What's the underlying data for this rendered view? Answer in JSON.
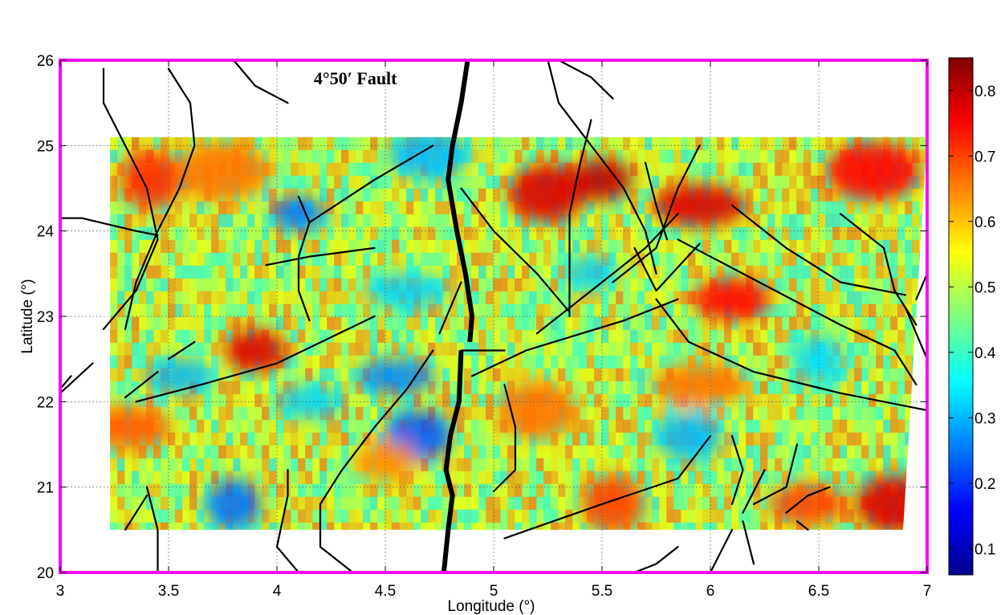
{
  "chart_data": {
    "type": "heatmap",
    "title": "",
    "xlabel": "Longitude (°)",
    "ylabel": "Latitude (°)",
    "xlim": [
      3,
      7
    ],
    "ylim": [
      20,
      26
    ],
    "x_ticks": [
      3,
      3.5,
      4,
      4.5,
      5,
      5.5,
      6,
      6.5,
      7
    ],
    "x_tick_labels": [
      "3",
      "3.5",
      "4",
      "4.5",
      "5",
      "5.5",
      "6",
      "6.5",
      "7"
    ],
    "y_ticks": [
      20,
      21,
      22,
      23,
      24,
      25,
      26
    ],
    "y_tick_labels": [
      "20",
      "21",
      "22",
      "23",
      "24",
      "25",
      "26"
    ],
    "grid": true,
    "frame_color": "#ff00ff",
    "colormap": "jet",
    "colorbar": {
      "range": [
        0.06,
        0.85
      ],
      "ticks": [
        0.1,
        0.2,
        0.3,
        0.4,
        0.5,
        0.6,
        0.7,
        0.8
      ],
      "tick_labels": [
        "0.1",
        "0.2",
        "0.3",
        "0.4",
        "0.5",
        "0.6",
        "0.7",
        "0.8"
      ]
    },
    "data_extent": {
      "lon": [
        3.23,
        7.0
      ],
      "lat_north": 25.1,
      "lat_south": 20.5
    },
    "annotation": {
      "text": "4°50′ Fault",
      "lon": 4.17,
      "lat": 25.72
    },
    "hot_regions": [
      {
        "lon": 5.5,
        "lat": 24.6,
        "value": 0.8
      },
      {
        "lon": 5.25,
        "lat": 24.45,
        "value": 0.78
      },
      {
        "lon": 5.95,
        "lat": 24.3,
        "value": 0.78
      },
      {
        "lon": 3.42,
        "lat": 24.6,
        "value": 0.72
      },
      {
        "lon": 6.1,
        "lat": 23.2,
        "value": 0.75
      },
      {
        "lon": 6.75,
        "lat": 24.7,
        "value": 0.75
      },
      {
        "lon": 3.9,
        "lat": 22.6,
        "value": 0.78
      },
      {
        "lon": 6.85,
        "lat": 20.8,
        "value": 0.78
      },
      {
        "lon": 3.3,
        "lat": 21.7,
        "value": 0.68
      },
      {
        "lon": 5.55,
        "lat": 20.8,
        "value": 0.7
      },
      {
        "lon": 6.45,
        "lat": 20.8,
        "value": 0.7
      },
      {
        "lon": 3.75,
        "lat": 24.7,
        "value": 0.66
      },
      {
        "lon": 4.5,
        "lat": 21.3,
        "value": 0.64
      },
      {
        "lon": 5.2,
        "lat": 21.9,
        "value": 0.66
      },
      {
        "lon": 5.95,
        "lat": 22.2,
        "value": 0.66
      }
    ],
    "cold_regions": [
      {
        "lon": 4.1,
        "lat": 24.2,
        "value": 0.25
      },
      {
        "lon": 4.65,
        "lat": 21.6,
        "value": 0.22
      },
      {
        "lon": 4.55,
        "lat": 22.3,
        "value": 0.26
      },
      {
        "lon": 3.8,
        "lat": 20.8,
        "value": 0.24
      },
      {
        "lon": 3.55,
        "lat": 22.3,
        "value": 0.3
      },
      {
        "lon": 4.7,
        "lat": 24.9,
        "value": 0.3
      },
      {
        "lon": 5.45,
        "lat": 23.5,
        "value": 0.32
      },
      {
        "lon": 5.9,
        "lat": 21.6,
        "value": 0.3
      },
      {
        "lon": 4.6,
        "lat": 23.3,
        "value": 0.32
      },
      {
        "lon": 6.5,
        "lat": 22.5,
        "value": 0.33
      },
      {
        "lon": 4.15,
        "lat": 22.0,
        "value": 0.32
      }
    ],
    "main_fault": [
      [
        4.88,
        26.0
      ],
      [
        4.85,
        25.5
      ],
      [
        4.81,
        25.0
      ],
      [
        4.79,
        24.6
      ],
      [
        4.83,
        24.0
      ],
      [
        4.87,
        23.5
      ],
      [
        4.9,
        23.0
      ],
      [
        4.89,
        22.7
      ]
    ],
    "main_fault_south": [
      [
        4.85,
        22.6
      ],
      [
        4.84,
        22.0
      ],
      [
        4.8,
        21.6
      ],
      [
        4.78,
        21.2
      ],
      [
        4.81,
        20.9
      ],
      [
        4.79,
        20.5
      ],
      [
        4.77,
        20.0
      ]
    ],
    "lineaments": [
      [
        [
          3.2,
          25.9
        ],
        [
          3.2,
          25.5
        ],
        [
          3.3,
          25.0
        ],
        [
          3.4,
          24.5
        ],
        [
          3.45,
          23.9
        ],
        [
          3.35,
          23.3
        ],
        [
          3.2,
          22.85
        ]
      ],
      [
        [
          3.5,
          25.9
        ],
        [
          3.6,
          25.5
        ],
        [
          3.62,
          25.0
        ],
        [
          3.55,
          24.5
        ],
        [
          3.45,
          24.0
        ],
        [
          3.35,
          23.4
        ],
        [
          3.3,
          22.85
        ]
      ],
      [
        [
          2.95,
          24.15
        ],
        [
          3.1,
          24.15
        ],
        [
          3.35,
          24.0
        ],
        [
          3.45,
          23.95
        ]
      ],
      [
        [
          3.8,
          26.0
        ],
        [
          3.9,
          25.7
        ],
        [
          4.05,
          25.5
        ]
      ],
      [
        [
          4.1,
          24.4
        ],
        [
          4.15,
          24.1
        ],
        [
          4.1,
          23.7
        ],
        [
          4.1,
          23.3
        ],
        [
          4.15,
          22.95
        ]
      ],
      [
        [
          4.15,
          24.1
        ],
        [
          4.45,
          24.6
        ],
        [
          4.72,
          25.0
        ]
      ],
      [
        [
          3.95,
          23.6
        ],
        [
          4.15,
          23.7
        ],
        [
          4.45,
          23.8
        ]
      ],
      [
        [
          3.35,
          22.0
        ],
        [
          3.65,
          22.2
        ],
        [
          4.0,
          22.45
        ],
        [
          4.45,
          23.0
        ]
      ],
      [
        [
          3.3,
          22.05
        ],
        [
          3.45,
          22.35
        ]
      ],
      [
        [
          3.5,
          22.5
        ],
        [
          3.62,
          22.7
        ]
      ],
      [
        [
          3.0,
          22.1
        ],
        [
          3.15,
          22.45
        ]
      ],
      [
        [
          2.95,
          22.0
        ],
        [
          3.05,
          22.3
        ]
      ],
      [
        [
          4.35,
          20.0
        ],
        [
          4.2,
          20.3
        ],
        [
          4.2,
          20.8
        ],
        [
          4.3,
          21.2
        ],
        [
          4.45,
          21.7
        ],
        [
          4.6,
          22.15
        ],
        [
          4.72,
          22.6
        ]
      ],
      [
        [
          4.1,
          20.0
        ],
        [
          4.0,
          20.3
        ],
        [
          4.05,
          20.9
        ],
        [
          4.05,
          21.2
        ]
      ],
      [
        [
          3.45,
          20.0
        ],
        [
          3.45,
          20.5
        ],
        [
          3.4,
          21.0
        ]
      ],
      [
        [
          3.3,
          20.5
        ],
        [
          3.4,
          20.9
        ]
      ],
      [
        [
          4.75,
          22.8
        ],
        [
          4.85,
          23.4
        ]
      ],
      [
        [
          5.25,
          26.0
        ],
        [
          5.3,
          25.5
        ],
        [
          5.45,
          25.0
        ],
        [
          5.6,
          24.5
        ],
        [
          5.7,
          24.0
        ],
        [
          5.75,
          23.5
        ]
      ],
      [
        [
          5.3,
          26.0
        ],
        [
          5.45,
          25.8
        ],
        [
          5.55,
          25.55
        ]
      ],
      [
        [
          4.85,
          24.5
        ],
        [
          5.0,
          24.0
        ],
        [
          5.2,
          23.5
        ],
        [
          5.35,
          23.05
        ]
      ],
      [
        [
          5.45,
          25.3
        ],
        [
          5.4,
          24.8
        ],
        [
          5.35,
          24.2
        ],
        [
          5.35,
          23.5
        ],
        [
          5.35,
          23.0
        ]
      ],
      [
        [
          5.2,
          22.8
        ],
        [
          5.45,
          23.3
        ],
        [
          5.7,
          23.8
        ],
        [
          5.85,
          24.2
        ]
      ],
      [
        [
          5.55,
          23.4
        ],
        [
          5.75,
          23.8
        ],
        [
          5.85,
          24.5
        ],
        [
          5.95,
          25.0
        ]
      ],
      [
        [
          5.7,
          24.8
        ],
        [
          5.75,
          24.3
        ],
        [
          5.8,
          23.9
        ]
      ],
      [
        [
          5.65,
          23.8
        ],
        [
          5.75,
          23.3
        ]
      ],
      [
        [
          5.75,
          23.3
        ],
        [
          5.95,
          23.85
        ]
      ],
      [
        [
          4.9,
          22.3
        ],
        [
          5.15,
          22.6
        ],
        [
          5.6,
          22.95
        ],
        [
          5.85,
          23.2
        ]
      ],
      [
        [
          4.85,
          22.6
        ],
        [
          5.05,
          22.6
        ]
      ],
      [
        [
          5.75,
          23.2
        ],
        [
          5.9,
          22.7
        ],
        [
          6.2,
          22.35
        ],
        [
          6.6,
          22.1
        ],
        [
          7.0,
          21.9
        ]
      ],
      [
        [
          5.85,
          23.9
        ],
        [
          6.3,
          23.3
        ],
        [
          6.6,
          22.9
        ],
        [
          6.85,
          22.6
        ],
        [
          6.95,
          22.2
        ]
      ],
      [
        [
          6.1,
          24.3
        ],
        [
          6.35,
          23.8
        ],
        [
          6.6,
          23.4
        ],
        [
          6.9,
          23.25
        ]
      ],
      [
        [
          6.6,
          24.2
        ],
        [
          6.8,
          23.8
        ],
        [
          6.85,
          23.3
        ],
        [
          6.95,
          22.9
        ]
      ],
      [
        [
          6.9,
          23.1
        ],
        [
          7.0,
          22.5
        ]
      ],
      [
        [
          6.95,
          23.2
        ],
        [
          7.05,
          23.8
        ]
      ],
      [
        [
          5.05,
          22.2
        ],
        [
          5.1,
          21.7
        ],
        [
          5.1,
          21.2
        ],
        [
          5.0,
          20.95
        ]
      ],
      [
        [
          5.05,
          20.4
        ],
        [
          5.5,
          20.8
        ],
        [
          5.85,
          21.1
        ],
        [
          6.0,
          21.6
        ]
      ],
      [
        [
          6.1,
          21.6
        ],
        [
          6.15,
          21.2
        ],
        [
          6.1,
          20.8
        ]
      ],
      [
        [
          6.15,
          20.7
        ],
        [
          6.25,
          21.2
        ]
      ],
      [
        [
          6.2,
          20.8
        ],
        [
          6.35,
          21.0
        ],
        [
          6.4,
          21.5
        ]
      ],
      [
        [
          6.35,
          20.7
        ],
        [
          6.45,
          20.9
        ],
        [
          6.55,
          21.0
        ]
      ],
      [
        [
          6.0,
          20.0
        ],
        [
          6.1,
          20.5
        ]
      ],
      [
        [
          6.2,
          20.1
        ],
        [
          6.15,
          20.6
        ]
      ],
      [
        [
          5.65,
          20.0
        ],
        [
          5.75,
          20.1
        ],
        [
          5.85,
          20.3
        ]
      ],
      [
        [
          6.4,
          20.6
        ],
        [
          6.45,
          20.5
        ]
      ]
    ]
  }
}
